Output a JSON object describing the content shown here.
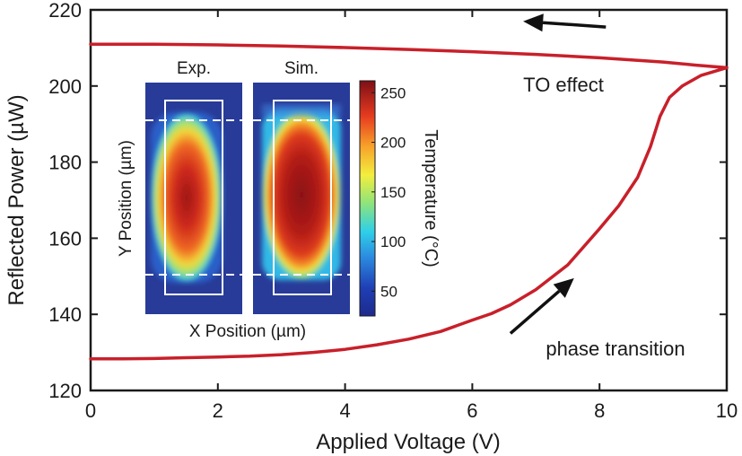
{
  "chart_data": {
    "type": "line",
    "xlabel": "Applied Voltage (V)",
    "ylabel": "Reflected Power (µW)",
    "xlim": [
      0,
      10
    ],
    "ylim": [
      120,
      220
    ],
    "xticks": [
      0,
      2,
      4,
      6,
      8,
      10
    ],
    "yticks": [
      120,
      140,
      160,
      180,
      200,
      220
    ],
    "grid": false,
    "series": [
      {
        "color": "#c8202a",
        "points": [
          [
            0,
            128.3
          ],
          [
            0.5,
            128.3
          ],
          [
            1,
            128.4
          ],
          [
            1.5,
            128.6
          ],
          [
            2,
            128.8
          ],
          [
            2.5,
            129.0
          ],
          [
            3,
            129.4
          ],
          [
            3.5,
            130.0
          ],
          [
            4,
            130.8
          ],
          [
            4.5,
            132.0
          ],
          [
            5,
            133.5
          ],
          [
            5.5,
            135.5
          ],
          [
            6,
            138.5
          ],
          [
            6.3,
            140.2
          ],
          [
            6.6,
            142.5
          ],
          [
            7,
            146.5
          ],
          [
            7.5,
            153.0
          ],
          [
            8,
            162.5
          ],
          [
            8.3,
            168.5
          ],
          [
            8.6,
            176.0
          ],
          [
            8.8,
            184.0
          ],
          [
            8.95,
            192.0
          ],
          [
            9.1,
            197.0
          ],
          [
            9.3,
            200.0
          ],
          [
            9.6,
            202.8
          ],
          [
            10,
            204.8
          ]
        ]
      },
      {
        "color": "#c8202a",
        "points": [
          [
            10,
            204.8
          ],
          [
            9.5,
            205.5
          ],
          [
            9,
            206.3
          ],
          [
            8,
            207.4
          ],
          [
            7,
            208.3
          ],
          [
            6,
            209.0
          ],
          [
            5,
            209.6
          ],
          [
            4,
            210.1
          ],
          [
            3,
            210.5
          ],
          [
            2,
            210.8
          ],
          [
            1,
            211.0
          ],
          [
            0,
            211.0
          ]
        ]
      }
    ],
    "annotations": [
      {
        "text": "TO effect",
        "x": 8.4,
        "y": 200
      },
      {
        "text": "phase transition",
        "x": 8.4,
        "y": 130
      }
    ],
    "arrows": [
      {
        "from": [
          8.1,
          215.5
        ],
        "to": [
          6.8,
          217.0
        ]
      },
      {
        "from": [
          6.6,
          135.0
        ],
        "to": [
          7.6,
          149.5
        ]
      }
    ],
    "inset": {
      "panel_labels": [
        "Exp.",
        "Sim."
      ],
      "xlabel": "X Position (µm)",
      "ylabel": "Y Position (µm)",
      "colorbar": {
        "label": "Temperature (°C)",
        "ticks": [
          50,
          100,
          150,
          200,
          250
        ],
        "range": [
          25,
          262
        ]
      }
    }
  }
}
